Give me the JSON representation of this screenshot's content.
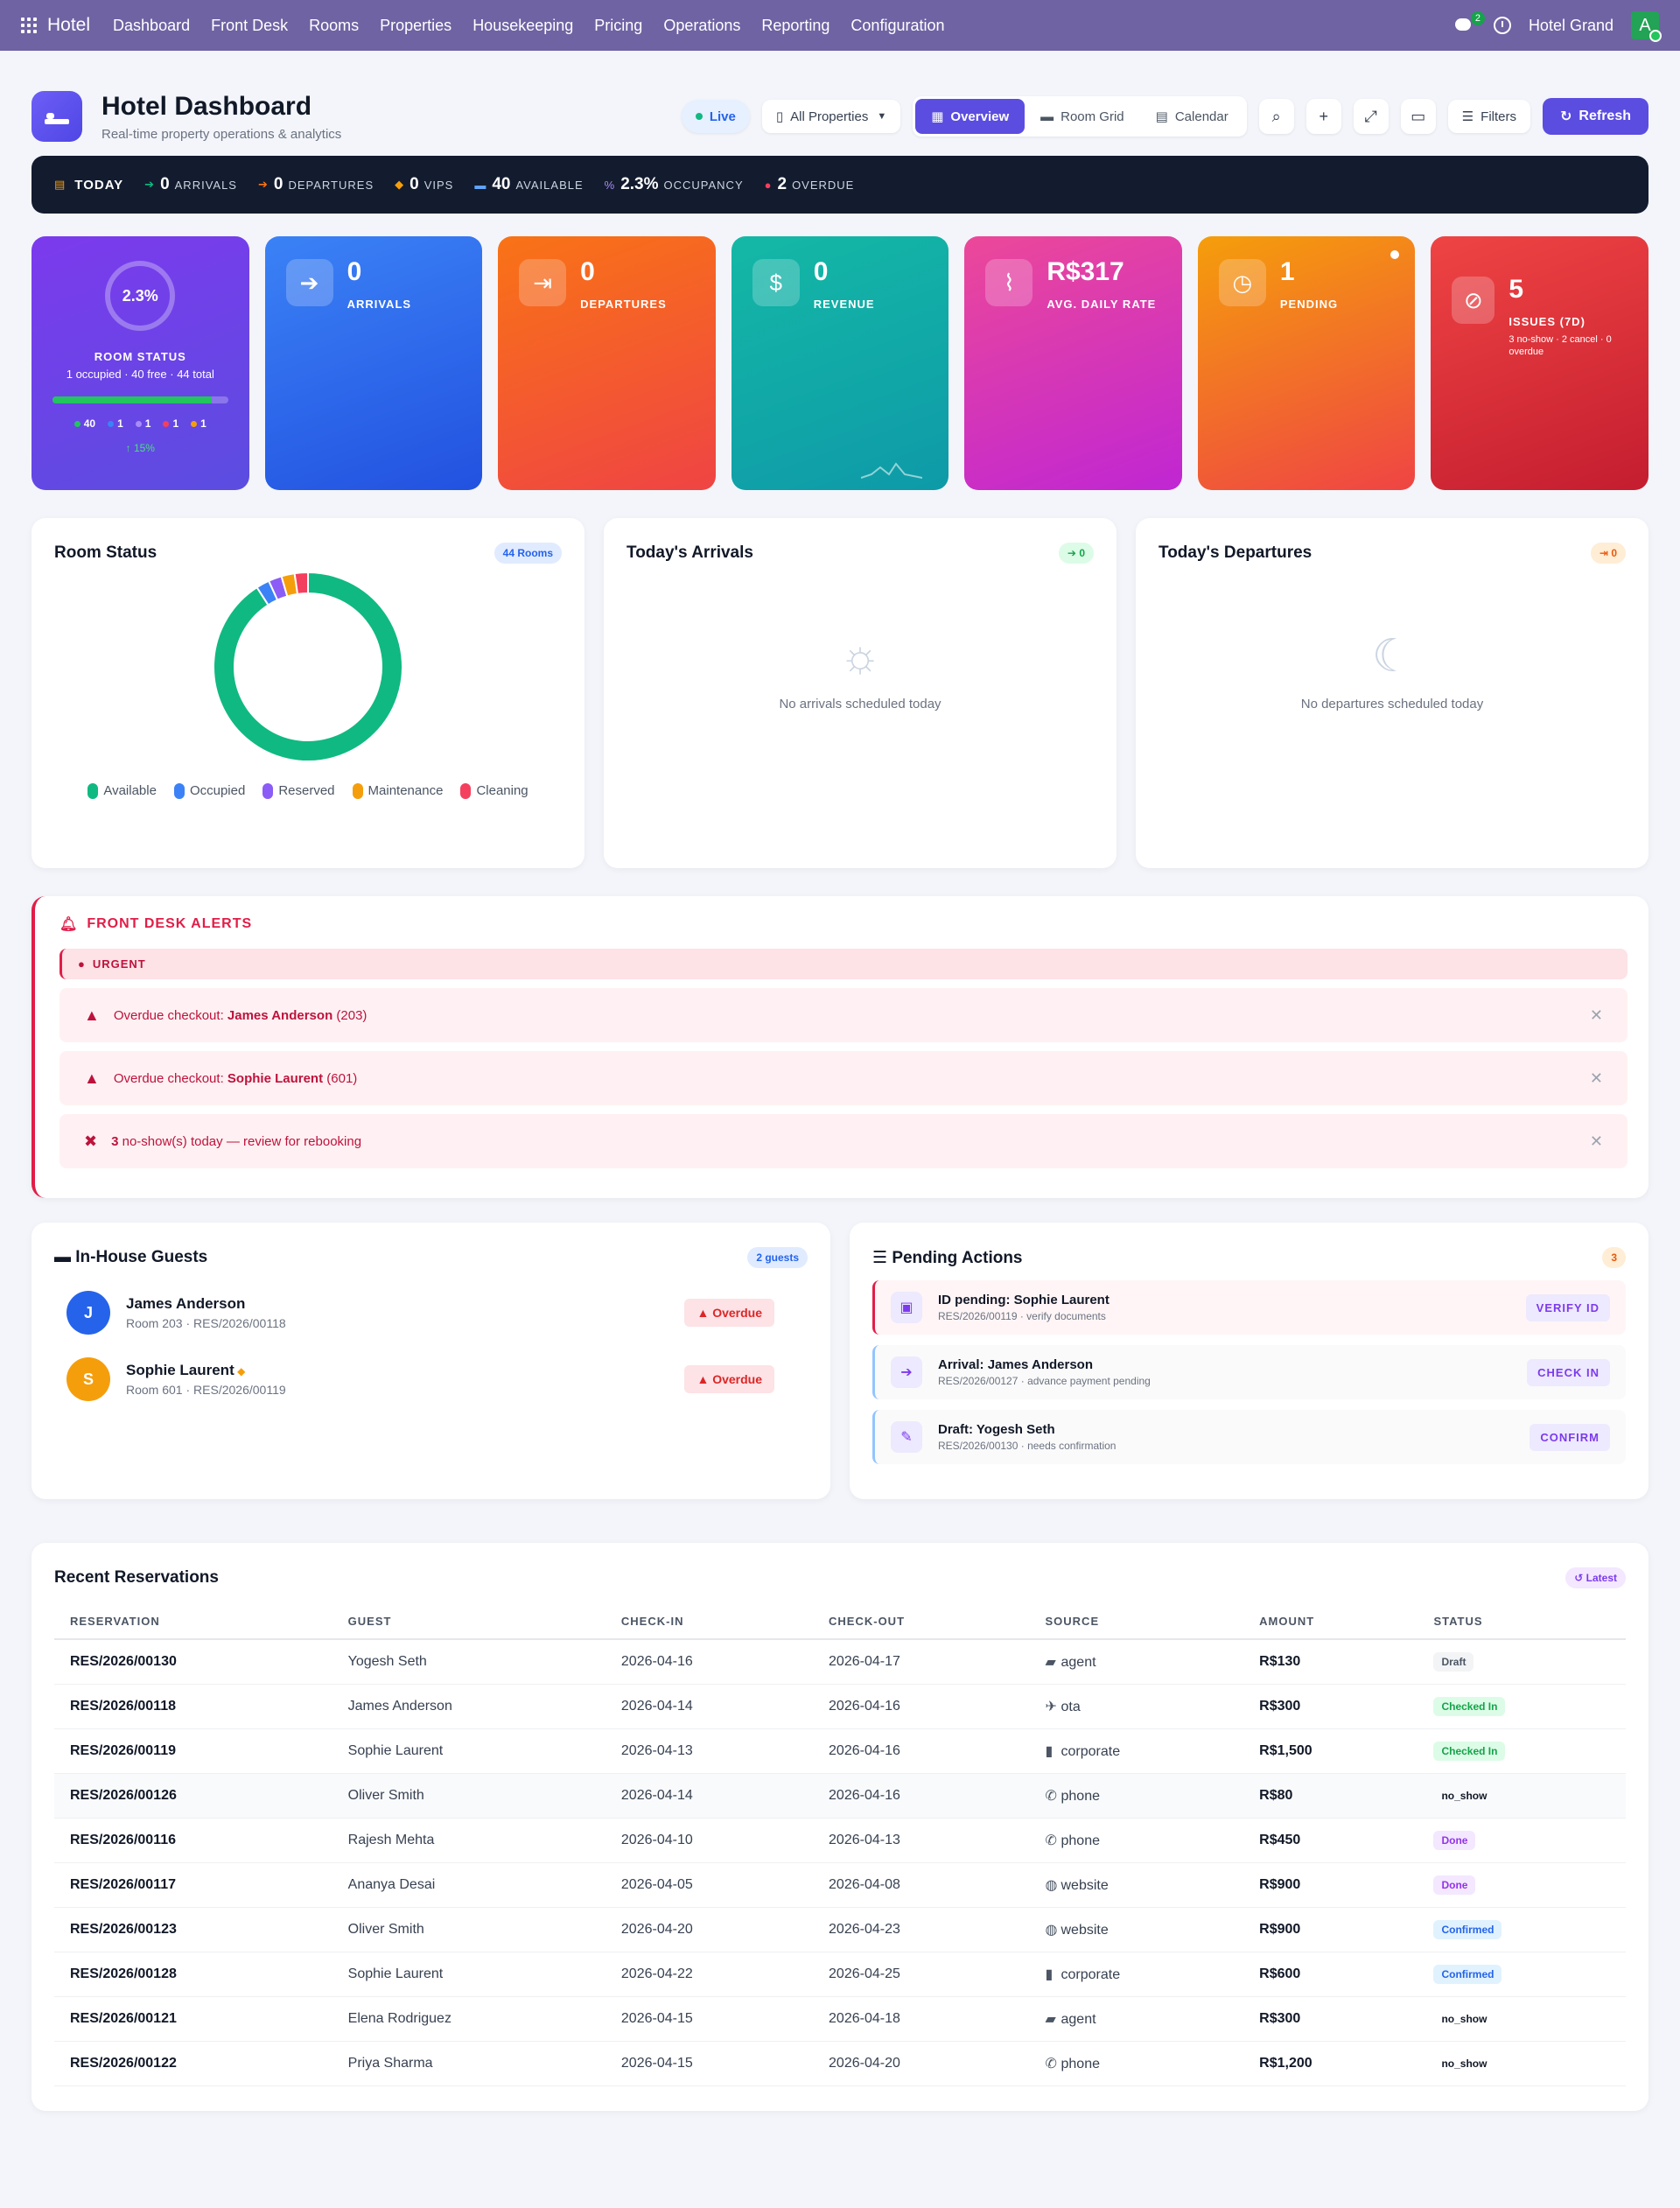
{
  "topbar": {
    "brand": "Hotel",
    "nav": [
      "Dashboard",
      "Front Desk",
      "Rooms",
      "Properties",
      "Housekeeping",
      "Pricing",
      "Operations",
      "Reporting",
      "Configuration"
    ],
    "chat_count": "2",
    "company": "Hotel Grand",
    "avatar_letter": "A"
  },
  "header": {
    "title": "Hotel Dashboard",
    "subtitle": "Real-time property operations & analytics",
    "live": "Live",
    "property_select": "All Properties",
    "views": [
      "Overview",
      "Room Grid",
      "Calendar"
    ],
    "filters": "Filters",
    "refresh": "Refresh"
  },
  "today": {
    "label": "TODAY",
    "arrivals": {
      "value": "0",
      "label": "ARRIVALS"
    },
    "departures": {
      "value": "0",
      "label": "DEPARTURES"
    },
    "vips": {
      "value": "0",
      "label": "VIPS"
    },
    "available": {
      "value": "40",
      "label": "AVAILABLE"
    },
    "occupancy": {
      "value": "2.3%",
      "label": "OCCUPANCY"
    },
    "overdue": {
      "value": "2",
      "label": "OVERDUE"
    }
  },
  "kpis": {
    "room_status": {
      "pct": "2.3%",
      "label": "ROOM STATUS",
      "sub": "1 occupied · 40 free · 44 total",
      "occupancy_fraction": 0.023,
      "counts": [
        "40",
        "1",
        "1",
        "1",
        "1"
      ],
      "trend": "15%"
    },
    "arrivals": {
      "value": "0",
      "label": "ARRIVALS"
    },
    "departures": {
      "value": "0",
      "label": "DEPARTURES"
    },
    "revenue": {
      "value": "0",
      "label": "REVENUE"
    },
    "adr": {
      "value": "R$317",
      "label": "AVG. DAILY RATE"
    },
    "pending": {
      "value": "1",
      "label": "PENDING"
    },
    "issues": {
      "value": "5",
      "label": "ISSUES (7D)",
      "sub": "3 no-show · 2 cancel · 0 overdue"
    }
  },
  "room_status_panel": {
    "title": "Room Status",
    "badge": "44 Rooms",
    "legend": [
      "Available",
      "Occupied",
      "Reserved",
      "Maintenance",
      "Cleaning"
    ],
    "slices": [
      {
        "name": "Available",
        "value": 40,
        "color": "#10b981"
      },
      {
        "name": "Occupied",
        "value": 1,
        "color": "#3b82f6"
      },
      {
        "name": "Reserved",
        "value": 1,
        "color": "#8b5cf6"
      },
      {
        "name": "Maintenance",
        "value": 1,
        "color": "#f59e0b"
      },
      {
        "name": "Cleaning",
        "value": 1,
        "color": "#f43f5e"
      }
    ]
  },
  "arrivals_panel": {
    "title": "Today's Arrivals",
    "badge": "0",
    "empty": "No arrivals scheduled today"
  },
  "departures_panel": {
    "title": "Today's Departures",
    "badge": "0",
    "empty": "No departures scheduled today"
  },
  "alerts": {
    "title": "FRONT DESK ALERTS",
    "urgent": "URGENT",
    "items": [
      {
        "prefix": "Overdue checkout: ",
        "name": "James Anderson",
        "suffix": " (203)"
      },
      {
        "prefix": "Overdue checkout: ",
        "name": "Sophie Laurent",
        "suffix": " (601)"
      },
      {
        "prefix": "",
        "name": "3",
        "suffix": " no-show(s) today — review for rebooking"
      }
    ]
  },
  "inhouse": {
    "title": "In-House Guests",
    "badge": "2 guests",
    "guests": [
      {
        "initial": "J",
        "name": "James Anderson",
        "sub": "Room 203 · RES/2026/00118",
        "status": "Overdue"
      },
      {
        "initial": "S",
        "name": "Sophie Laurent",
        "sub": "Room 601 · RES/2026/00119",
        "status": "Overdue"
      }
    ]
  },
  "pending": {
    "title": "Pending Actions",
    "badge": "3",
    "items": [
      {
        "title": "ID pending: Sophie Laurent",
        "sub": "RES/2026/00119 · verify documents",
        "action": "VERIFY ID"
      },
      {
        "title": "Arrival: James Anderson",
        "sub": "RES/2026/00127 · advance payment pending",
        "action": "CHECK IN"
      },
      {
        "title": "Draft: Yogesh Seth",
        "sub": "RES/2026/00130 · needs confirmation",
        "action": "CONFIRM"
      }
    ]
  },
  "reservations": {
    "title": "Recent Reservations",
    "badge": "Latest",
    "columns": [
      "RESERVATION",
      "GUEST",
      "CHECK-IN",
      "CHECK-OUT",
      "SOURCE",
      "AMOUNT",
      "STATUS"
    ],
    "rows": [
      {
        "code": "RES/2026/00130",
        "guest": "Yogesh Seth",
        "in": "2026-04-16",
        "out": "2026-04-17",
        "source": "agent",
        "amount": "R$130",
        "status": "Draft"
      },
      {
        "code": "RES/2026/00118",
        "guest": "James Anderson",
        "in": "2026-04-14",
        "out": "2026-04-16",
        "source": "ota",
        "amount": "R$300",
        "status": "Checked In"
      },
      {
        "code": "RES/2026/00119",
        "guest": "Sophie Laurent",
        "in": "2026-04-13",
        "out": "2026-04-16",
        "source": "corporate",
        "amount": "R$1,500",
        "status": "Checked In"
      },
      {
        "code": "RES/2026/00126",
        "guest": "Oliver Smith",
        "in": "2026-04-14",
        "out": "2026-04-16",
        "source": "phone",
        "amount": "R$80",
        "status": "no_show"
      },
      {
        "code": "RES/2026/00116",
        "guest": "Rajesh Mehta",
        "in": "2026-04-10",
        "out": "2026-04-13",
        "source": "phone",
        "amount": "R$450",
        "status": "Done"
      },
      {
        "code": "RES/2026/00117",
        "guest": "Ananya Desai",
        "in": "2026-04-05",
        "out": "2026-04-08",
        "source": "website",
        "amount": "R$900",
        "status": "Done"
      },
      {
        "code": "RES/2026/00123",
        "guest": "Oliver Smith",
        "in": "2026-04-20",
        "out": "2026-04-23",
        "source": "website",
        "amount": "R$900",
        "status": "Confirmed"
      },
      {
        "code": "RES/2026/00128",
        "guest": "Sophie Laurent",
        "in": "2026-04-22",
        "out": "2026-04-25",
        "source": "corporate",
        "amount": "R$600",
        "status": "Confirmed"
      },
      {
        "code": "RES/2026/00121",
        "guest": "Elena Rodriguez",
        "in": "2026-04-15",
        "out": "2026-04-18",
        "source": "agent",
        "amount": "R$300",
        "status": "no_show"
      },
      {
        "code": "RES/2026/00122",
        "guest": "Priya Sharma",
        "in": "2026-04-15",
        "out": "2026-04-20",
        "source": "phone",
        "amount": "R$1,200",
        "status": "no_show"
      }
    ]
  }
}
